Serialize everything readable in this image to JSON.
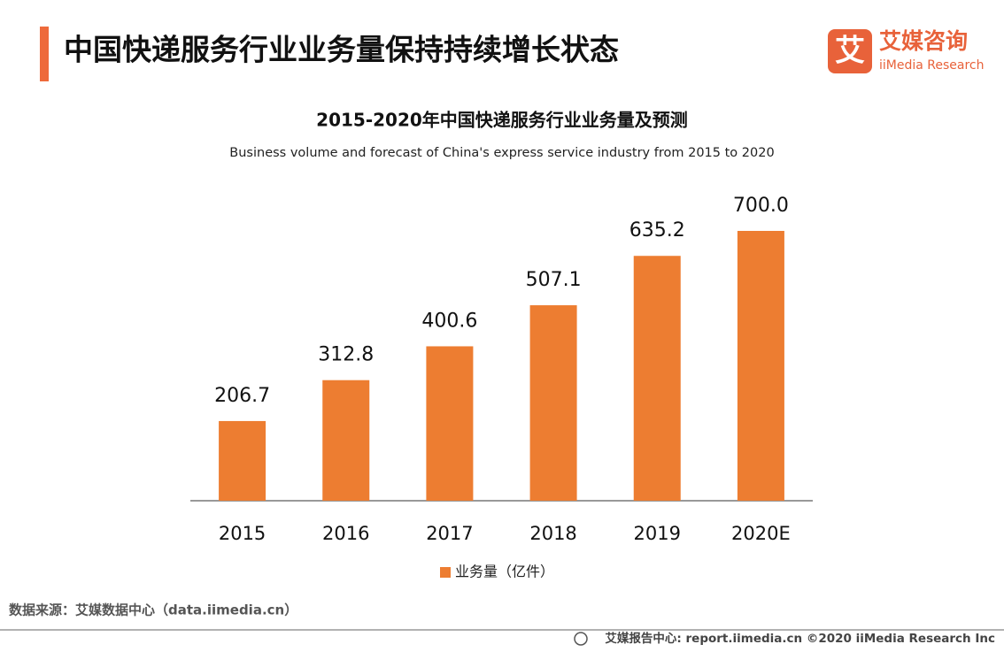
{
  "header": {
    "title": "中国快递服务行业业务量保持持续增长状态"
  },
  "logo": {
    "mark": "艾",
    "name": "艾媒咨询",
    "sub": "iiMedia Research"
  },
  "chart_data": {
    "type": "bar",
    "title": "2015-2020年中国快递服务行业业务量及预测",
    "subtitle": "Business volume and forecast of China's express service industry from 2015 to 2020",
    "categories": [
      "2015",
      "2016",
      "2017",
      "2018",
      "2019",
      "2020E"
    ],
    "series": [
      {
        "name": "业务量（亿件）",
        "color": "#ed7d31",
        "values": [
          206.7,
          312.8,
          400.6,
          507.1,
          635.2,
          700
        ],
        "value_labels": [
          "206.7",
          "312.8",
          "400.6",
          "507.1",
          "635.2",
          "700.0"
        ]
      }
    ]
  },
  "source": "数据来源：艾媒数据中心（data.iimedia.cn）",
  "footer": "艾媒报告中心: report.iimedia.cn   ©2020  iiMedia Research  Inc"
}
